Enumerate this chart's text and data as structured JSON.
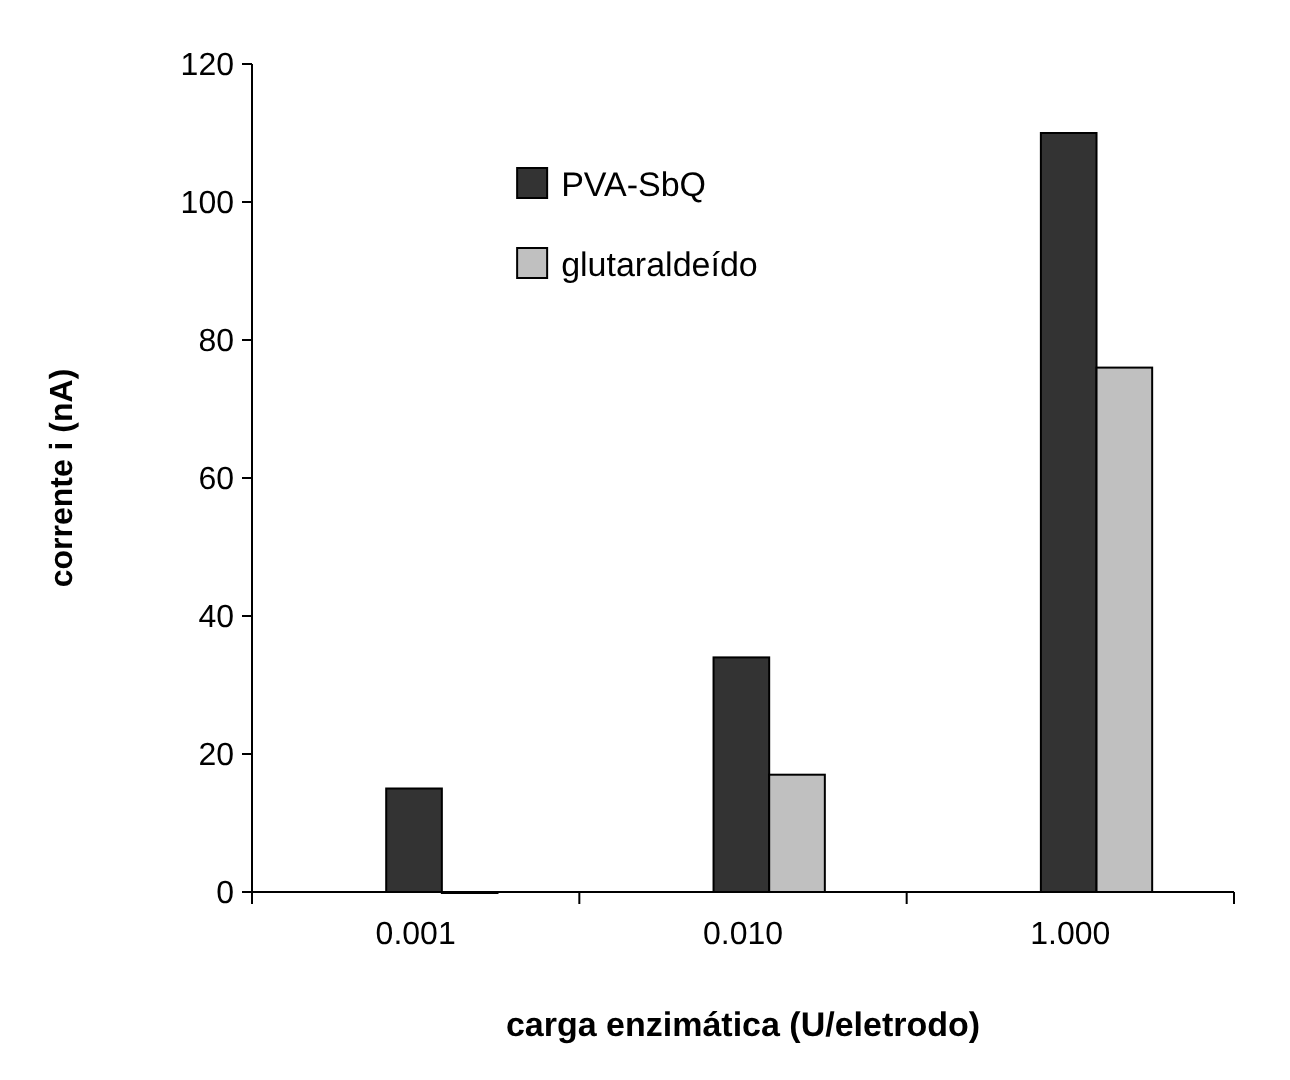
{
  "chart_data": {
    "type": "bar",
    "xlabel": "carga enzimática (U/eletrodo)",
    "ylabel": "corrente i (nA)",
    "categories": [
      "0.001",
      "0.010",
      "1.000"
    ],
    "series": [
      {
        "name": "PVA-SbQ",
        "color": "#333333",
        "values": [
          15,
          34,
          110
        ]
      },
      {
        "name": "glutaraldeído",
        "color": "#c0c0c0",
        "values": [
          0,
          17,
          76
        ]
      }
    ],
    "ylim": [
      0,
      120
    ],
    "yticks": [
      0,
      20,
      40,
      60,
      80,
      100,
      120
    ],
    "legend": "top"
  }
}
